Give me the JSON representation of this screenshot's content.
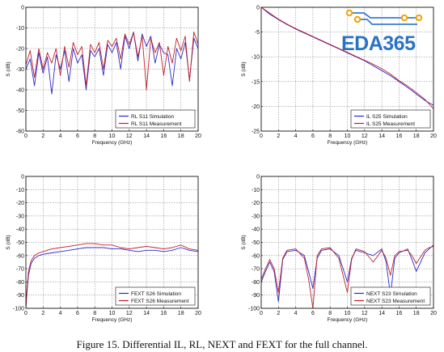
{
  "caption": "Figure 15. Differential IL, RL, NEXT and FEXT for the full channel.",
  "watermark": {
    "text": "EDA365",
    "color": "#2a73c4",
    "circuit_color": "#f0a500",
    "trace_color": "#3a7bd5"
  },
  "colors": {
    "simulation": "#2b2bc9",
    "measurement": "#c0202a"
  },
  "chart_data": [
    {
      "type": "line",
      "panel": "RL",
      "xlabel": "Frequency (GHz)",
      "ylabel": "S (dB)",
      "xlim": [
        0,
        20
      ],
      "ylim": [
        -60,
        0
      ],
      "xticks": [
        0,
        2,
        4,
        6,
        8,
        10,
        12,
        14,
        16,
        18,
        20
      ],
      "yticks": [
        0,
        -10,
        -20,
        -30,
        -40,
        -50,
        -60
      ],
      "grid": true,
      "legend_position": "bottom-right",
      "series": [
        {
          "name": "RL S11 Simulation",
          "color": "#2b2bc9",
          "x": [
            0,
            0.5,
            1,
            1.5,
            2,
            2.5,
            3,
            3.5,
            4,
            4.5,
            5,
            5.5,
            6,
            6.5,
            7,
            7.5,
            8,
            8.5,
            9,
            9.5,
            10,
            10.5,
            11,
            11.5,
            12,
            12.5,
            13,
            13.5,
            14,
            14.5,
            15,
            15.5,
            16,
            16.5,
            17,
            17.5,
            18,
            18.5,
            19,
            19.5,
            20
          ],
          "y": [
            -30,
            -25,
            -38,
            -22,
            -32,
            -24,
            -42,
            -23,
            -30,
            -21,
            -36,
            -20,
            -27,
            -23,
            -40,
            -21,
            -24,
            -20,
            -33,
            -18,
            -22,
            -17,
            -30,
            -14,
            -20,
            -12,
            -26,
            -13,
            -19,
            -14,
            -27,
            -18,
            -22,
            -23,
            -38,
            -20,
            -25,
            -17,
            -35,
            -15,
            -20
          ]
        },
        {
          "name": "RL S11 Measurement",
          "color": "#c0202a",
          "x": [
            0,
            0.5,
            1,
            1.5,
            2,
            2.5,
            3,
            3.5,
            4,
            4.5,
            5,
            5.5,
            6,
            6.5,
            7,
            7.5,
            8,
            8.5,
            9,
            9.5,
            10,
            10.5,
            11,
            11.5,
            12,
            12.5,
            13,
            13.5,
            14,
            14.5,
            15,
            15.5,
            16,
            16.5,
            17,
            17.5,
            18,
            18.5,
            19,
            19.5,
            20
          ],
          "y": [
            -28,
            -21,
            -34,
            -20,
            -30,
            -22,
            -27,
            -20,
            -33,
            -19,
            -29,
            -17,
            -23,
            -19,
            -38,
            -18,
            -22,
            -17,
            -30,
            -16,
            -19,
            -15,
            -25,
            -13,
            -18,
            -12,
            -24,
            -14,
            -40,
            -15,
            -22,
            -17,
            -33,
            -19,
            -27,
            -15,
            -21,
            -14,
            -36,
            -12,
            -18
          ]
        }
      ]
    },
    {
      "type": "line",
      "panel": "IL",
      "xlabel": "Frequency (GHz)",
      "ylabel": "S (dB)",
      "xlim": [
        0,
        20
      ],
      "ylim": [
        -25,
        0
      ],
      "xticks": [
        0,
        2,
        4,
        6,
        8,
        10,
        12,
        14,
        16,
        18,
        20
      ],
      "yticks": [
        0,
        -5,
        -10,
        -15,
        -20,
        -25
      ],
      "grid": true,
      "legend_position": "bottom-right",
      "series": [
        {
          "name": "IL S25 Simulation",
          "color": "#2b2bc9",
          "x": [
            0,
            1,
            2,
            3,
            4,
            5,
            6,
            7,
            8,
            9,
            10,
            11,
            12,
            13,
            14,
            15,
            16,
            17,
            18,
            19,
            20
          ],
          "y": [
            0,
            -1.4,
            -2.5,
            -3.5,
            -4.4,
            -5.2,
            -6.0,
            -6.8,
            -7.6,
            -8.4,
            -9.2,
            -10.0,
            -10.8,
            -11.8,
            -12.8,
            -13.8,
            -15.0,
            -16.2,
            -17.5,
            -18.8,
            -19.8
          ]
        },
        {
          "name": "IL S25 Measurement",
          "color": "#c0202a",
          "x": [
            0,
            1,
            2,
            3,
            4,
            5,
            6,
            7,
            8,
            9,
            10,
            11,
            12,
            13,
            14,
            15,
            16,
            17,
            18,
            19,
            20
          ],
          "y": [
            0,
            -1.2,
            -2.4,
            -3.4,
            -4.3,
            -5.1,
            -5.9,
            -6.7,
            -7.5,
            -8.3,
            -9.1,
            -9.9,
            -10.7,
            -11.5,
            -12.4,
            -13.5,
            -14.8,
            -15.9,
            -17.2,
            -18.6,
            -20.5
          ]
        }
      ]
    },
    {
      "type": "line",
      "panel": "FEXT",
      "xlabel": "Frequency (GHz)",
      "ylabel": "S (dB)",
      "xlim": [
        0,
        20
      ],
      "ylim": [
        -100,
        0
      ],
      "xticks": [
        0,
        2,
        4,
        6,
        8,
        10,
        12,
        14,
        16,
        18,
        20
      ],
      "yticks": [
        0,
        -10,
        -20,
        -30,
        -40,
        -50,
        -60,
        -70,
        -80,
        -90,
        -100
      ],
      "grid": true,
      "legend_position": "bottom-right",
      "series": [
        {
          "name": "FEXT S26 Simulation",
          "color": "#2b2bc9",
          "x": [
            0,
            0.1,
            0.3,
            0.6,
            1,
            1.5,
            2,
            3,
            4,
            5,
            6,
            7,
            8,
            9,
            10,
            11,
            12,
            13,
            14,
            15,
            16,
            17,
            18,
            19,
            20
          ],
          "y": [
            -100,
            -90,
            -75,
            -66,
            -62,
            -60,
            -59,
            -58,
            -57,
            -56,
            -55,
            -54,
            -54,
            -54,
            -55,
            -55,
            -56,
            -57,
            -56,
            -56,
            -57,
            -56,
            -54,
            -56,
            -57
          ]
        },
        {
          "name": "FEXT S26 Measurement",
          "color": "#c0202a",
          "x": [
            0,
            0.1,
            0.3,
            0.6,
            1,
            1.5,
            2,
            3,
            4,
            5,
            6,
            7,
            8,
            9,
            10,
            11,
            12,
            13,
            14,
            15,
            16,
            17,
            18,
            19,
            20
          ],
          "y": [
            -100,
            -88,
            -72,
            -64,
            -60,
            -58,
            -57,
            -55,
            -54,
            -53,
            -52,
            -51,
            -51,
            -52,
            -52,
            -54,
            -55,
            -54,
            -53,
            -54,
            -55,
            -54,
            -52,
            -55,
            -56
          ]
        }
      ]
    },
    {
      "type": "line",
      "panel": "NEXT",
      "xlabel": "Frequency (GHz)",
      "ylabel": "S (dB)",
      "xlim": [
        0,
        20
      ],
      "ylim": [
        -100,
        0
      ],
      "xticks": [
        0,
        2,
        4,
        6,
        8,
        10,
        12,
        14,
        16,
        18,
        20
      ],
      "yticks": [
        0,
        -10,
        -20,
        -30,
        -40,
        -50,
        -60,
        -70,
        -80,
        -90,
        -100
      ],
      "grid": true,
      "legend_position": "bottom-right",
      "series": [
        {
          "name": "NEXT S23 Simulation",
          "color": "#2b2bc9",
          "x": [
            0,
            0.5,
            1,
            1.5,
            2,
            2.5,
            3,
            4,
            5,
            5.5,
            6,
            6.5,
            7,
            8,
            9,
            10,
            10.5,
            11,
            12,
            13,
            14,
            14.5,
            15,
            15.5,
            16,
            17,
            17.5,
            18,
            19,
            19.5,
            20
          ],
          "y": [
            -80,
            -72,
            -65,
            -72,
            -95,
            -63,
            -57,
            -56,
            -60,
            -72,
            -85,
            -62,
            -56,
            -55,
            -60,
            -80,
            -62,
            -56,
            -58,
            -60,
            -55,
            -65,
            -90,
            -62,
            -58,
            -55,
            -63,
            -72,
            -58,
            -55,
            -52
          ]
        },
        {
          "name": "NEXT S23 Measurement",
          "color": "#c0202a",
          "x": [
            0,
            0.5,
            1,
            1.5,
            2,
            2.5,
            3,
            4,
            5,
            5.5,
            6,
            6.5,
            7,
            8,
            9,
            10,
            10.5,
            11,
            12,
            13,
            14,
            14.5,
            15,
            15.5,
            16,
            17,
            17.5,
            18,
            19,
            19.5,
            20
          ],
          "y": [
            -78,
            -70,
            -63,
            -70,
            -88,
            -62,
            -56,
            -55,
            -62,
            -78,
            -100,
            -60,
            -55,
            -54,
            -62,
            -88,
            -63,
            -55,
            -57,
            -65,
            -56,
            -62,
            -75,
            -60,
            -57,
            -56,
            -60,
            -66,
            -56,
            -54,
            -53
          ]
        }
      ]
    }
  ]
}
